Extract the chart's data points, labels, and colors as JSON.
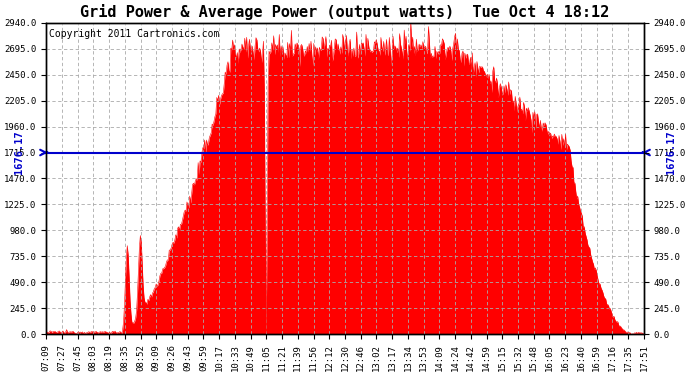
{
  "title": "Grid Power & Average Power (output watts)  Tue Oct 4 18:12",
  "copyright": "Copyright 2011 Cartronics.com",
  "avg_value": 1676.17,
  "avg_line_y": 1715.0,
  "y_ticks": [
    0.0,
    245.0,
    490.0,
    735.0,
    980.0,
    1225.0,
    1470.0,
    1715.0,
    1960.0,
    2205.0,
    2450.0,
    2695.0,
    2940.0
  ],
  "y_max": 2940.0,
  "fill_color": "#ff0000",
  "line_color": "#0000cc",
  "bg_color": "#ffffff",
  "grid_color": "#aaaaaa",
  "x_tick_labels": [
    "07:09",
    "07:27",
    "07:45",
    "08:03",
    "08:19",
    "08:35",
    "08:52",
    "09:09",
    "09:26",
    "09:43",
    "09:59",
    "10:17",
    "10:33",
    "10:49",
    "11:05",
    "11:21",
    "11:39",
    "11:56",
    "12:12",
    "12:30",
    "12:46",
    "13:02",
    "13:17",
    "13:34",
    "13:53",
    "14:09",
    "14:24",
    "14:42",
    "14:59",
    "15:15",
    "15:32",
    "15:48",
    "16:05",
    "16:23",
    "16:40",
    "16:59",
    "17:16",
    "17:35",
    "17:51"
  ],
  "title_fontsize": 11,
  "copyright_fontsize": 7,
  "tick_fontsize": 6.5,
  "avg_label_fontsize": 7.5
}
